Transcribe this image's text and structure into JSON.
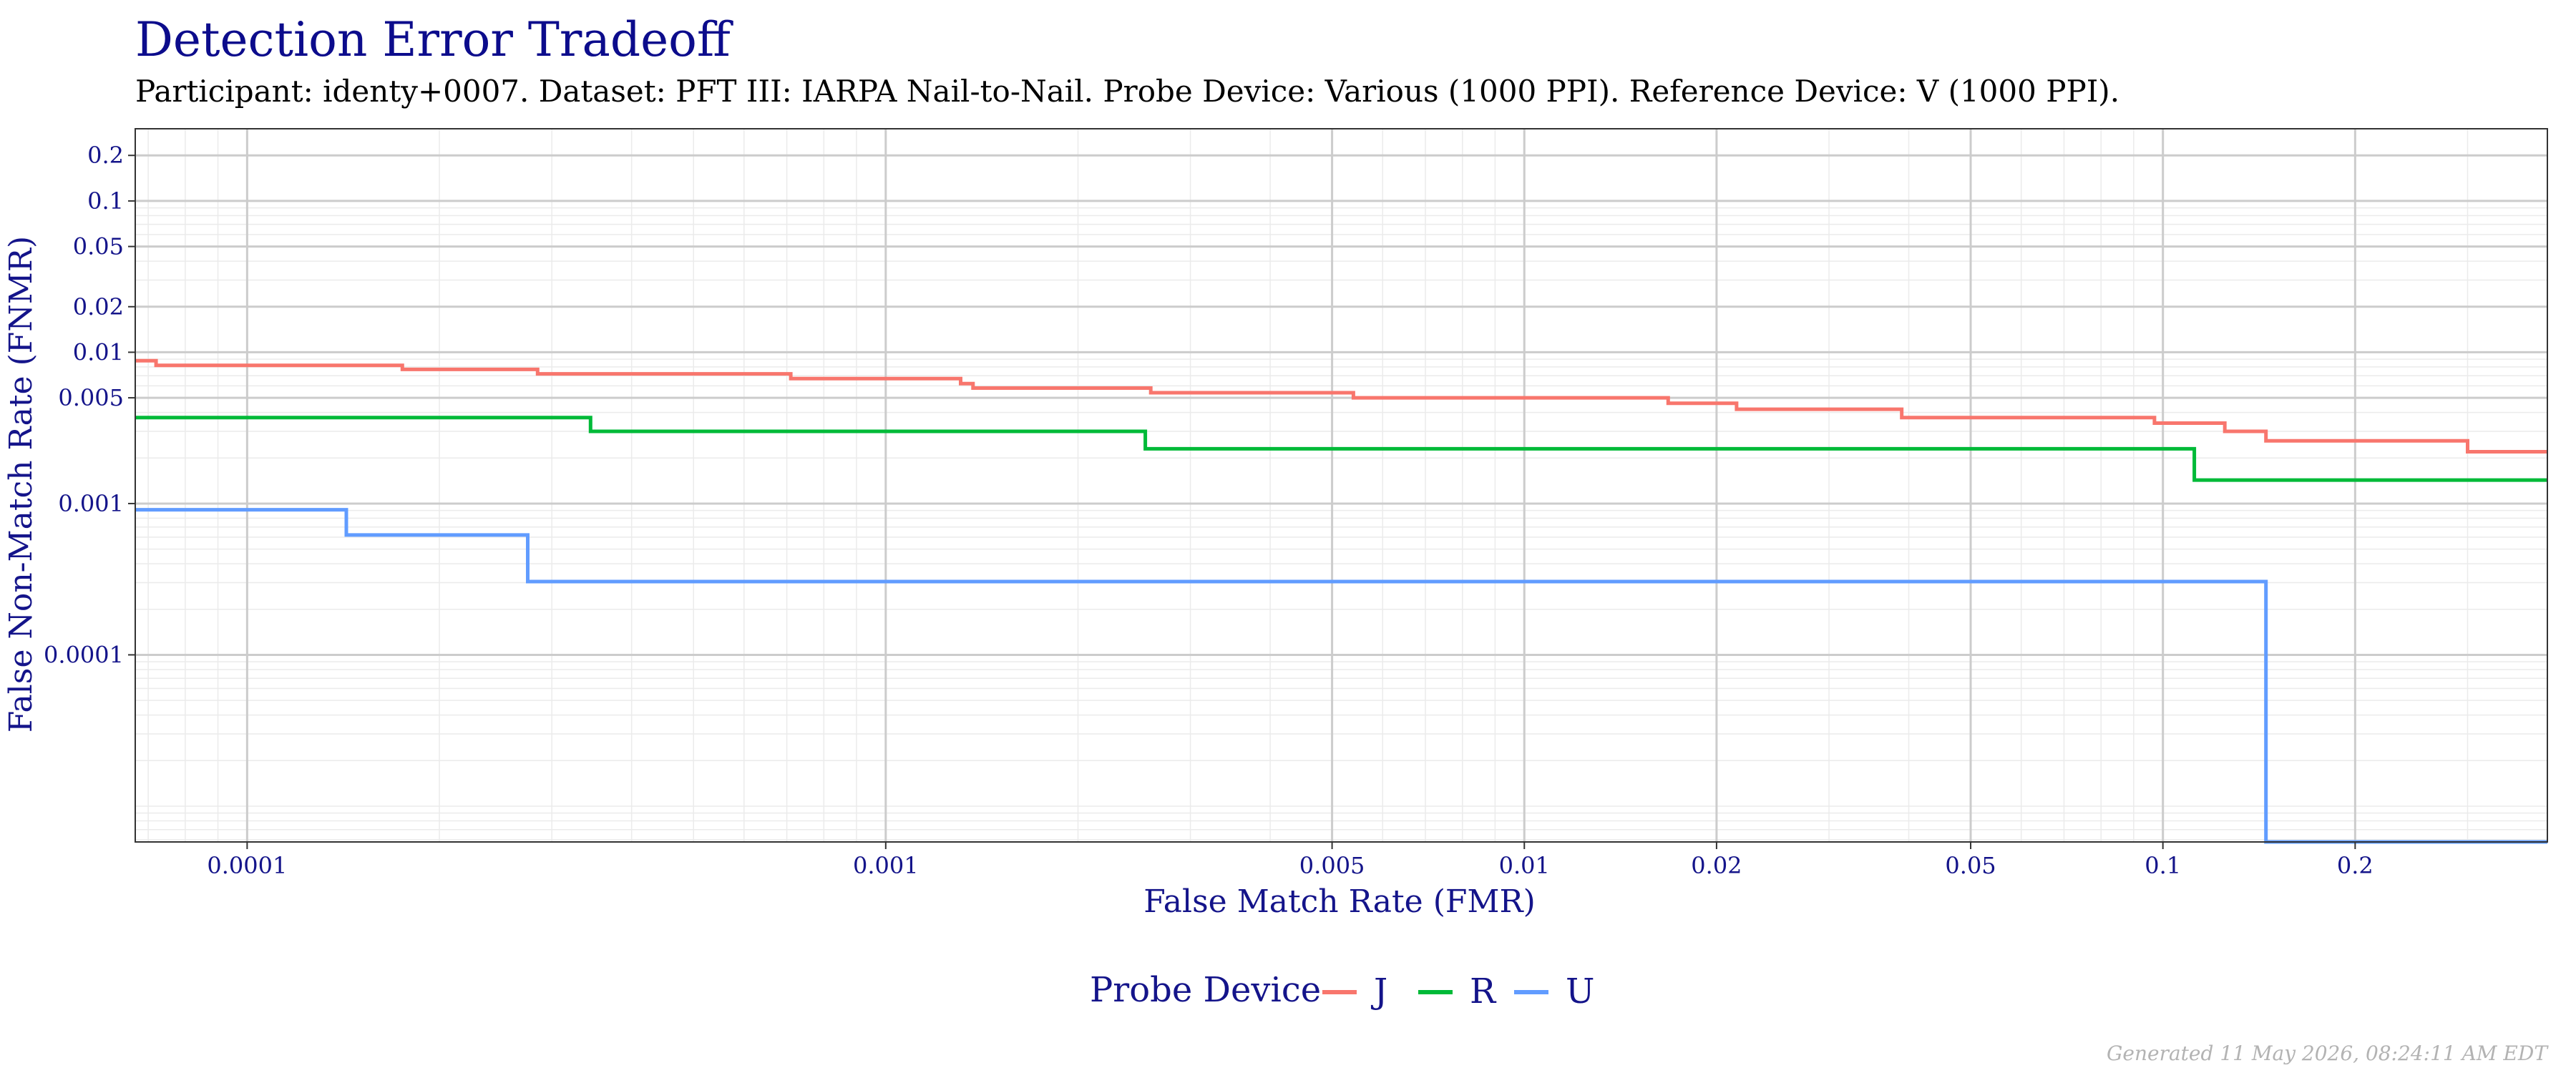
{
  "chart_data": {
    "type": "line",
    "title": "Detection Error Tradeoff",
    "subtitle": "Participant: identy+0007. Dataset: PFT III: IARPA Nail-to-Nail. Probe Device: Various (1000 PPI). Reference Device: V (1000 PPI).",
    "xlabel": "False Match Rate (FMR)",
    "ylabel": "False Non-Match Rate (FNMR)",
    "xscale": "log",
    "yscale": "log",
    "xlim": [
      6.68e-05,
      0.4
    ],
    "ylim": [
      5.8e-06,
      0.3
    ],
    "x_ticks": [
      {
        "value": 0.0001,
        "label": "0.0001"
      },
      {
        "value": 0.001,
        "label": "0.001"
      },
      {
        "value": 0.005,
        "label": "0.005"
      },
      {
        "value": 0.01,
        "label": "0.01"
      },
      {
        "value": 0.02,
        "label": "0.02"
      },
      {
        "value": 0.05,
        "label": "0.05"
      },
      {
        "value": 0.1,
        "label": "0.1"
      },
      {
        "value": 0.2,
        "label": "0.2"
      }
    ],
    "y_ticks": [
      {
        "value": 0.0001,
        "label": "0.0001"
      },
      {
        "value": 0.001,
        "label": "0.001"
      },
      {
        "value": 0.005,
        "label": "0.005"
      },
      {
        "value": 0.01,
        "label": "0.01"
      },
      {
        "value": 0.02,
        "label": "0.02"
      },
      {
        "value": 0.05,
        "label": "0.05"
      },
      {
        "value": 0.1,
        "label": "0.1"
      },
      {
        "value": 0.2,
        "label": "0.2"
      }
    ],
    "grid": true,
    "legend": {
      "title": "Probe Device",
      "position": "bottom"
    },
    "series": [
      {
        "name": "J",
        "color": "#F8766D",
        "points": [
          [
            6.68e-05,
            0.0088
          ],
          [
            7.2e-05,
            0.0088
          ],
          [
            7.2e-05,
            0.0082
          ],
          [
            0.000175,
            0.0082
          ],
          [
            0.000175,
            0.0077
          ],
          [
            0.000285,
            0.0077
          ],
          [
            0.000285,
            0.0072
          ],
          [
            0.00071,
            0.0072
          ],
          [
            0.00071,
            0.0067
          ],
          [
            0.00131,
            0.0067
          ],
          [
            0.00131,
            0.0062
          ],
          [
            0.00137,
            0.0062
          ],
          [
            0.00137,
            0.0058
          ],
          [
            0.0026,
            0.0058
          ],
          [
            0.0026,
            0.0054
          ],
          [
            0.0054,
            0.0054
          ],
          [
            0.0054,
            0.005
          ],
          [
            0.0168,
            0.005
          ],
          [
            0.0168,
            0.0046
          ],
          [
            0.0215,
            0.0046
          ],
          [
            0.0215,
            0.0042
          ],
          [
            0.039,
            0.0042
          ],
          [
            0.039,
            0.0037
          ],
          [
            0.097,
            0.0037
          ],
          [
            0.097,
            0.0034
          ],
          [
            0.125,
            0.0034
          ],
          [
            0.125,
            0.003
          ],
          [
            0.145,
            0.003
          ],
          [
            0.145,
            0.0026
          ],
          [
            0.3,
            0.0026
          ],
          [
            0.3,
            0.0022
          ],
          [
            0.4,
            0.0022
          ]
        ]
      },
      {
        "name": "R",
        "color": "#00BA38",
        "points": [
          [
            6.68e-05,
            0.0037
          ],
          [
            0.000345,
            0.0037
          ],
          [
            0.000345,
            0.003
          ],
          [
            0.00255,
            0.003
          ],
          [
            0.00255,
            0.0023
          ],
          [
            0.112,
            0.0023
          ],
          [
            0.112,
            0.00143
          ],
          [
            0.4,
            0.00143
          ]
        ]
      },
      {
        "name": "U",
        "color": "#619CFF",
        "points": [
          [
            6.68e-05,
            0.00091
          ],
          [
            0.000143,
            0.00091
          ],
          [
            0.000143,
            0.00062
          ],
          [
            0.000275,
            0.00062
          ],
          [
            0.000275,
            0.000305
          ],
          [
            0.145,
            0.000305
          ],
          [
            0.145,
            5.8e-06
          ],
          [
            0.4,
            5.8e-06
          ]
        ]
      }
    ]
  },
  "footer": "Generated 11 May 2026, 08:24:11 AM EDT"
}
